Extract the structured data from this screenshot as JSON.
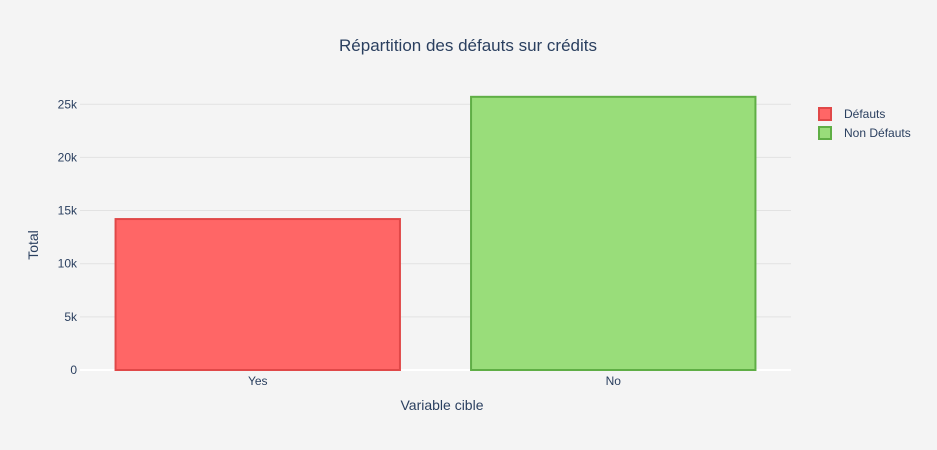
{
  "chart_data": {
    "type": "bar",
    "title": "Répartition des défauts sur crédits",
    "xlabel": "Variable cible",
    "ylabel": "Total",
    "categories": [
      "Yes",
      "No"
    ],
    "series": [
      {
        "name": "Défauts",
        "category": "Yes",
        "value": 14200,
        "fill": "#ff6666",
        "stroke": "#e04848"
      },
      {
        "name": "Non Défauts",
        "category": "No",
        "value": 25700,
        "fill": "#99dd7a",
        "stroke": "#5fae45"
      }
    ],
    "ylim": [
      0,
      27000
    ],
    "yticks": [
      {
        "value": 0,
        "label": "0"
      },
      {
        "value": 5000,
        "label": "5k"
      },
      {
        "value": 10000,
        "label": "10k"
      },
      {
        "value": 15000,
        "label": "15k"
      },
      {
        "value": 20000,
        "label": "20k"
      },
      {
        "value": 25000,
        "label": "25k"
      }
    ],
    "grid": true,
    "legend_position": "top-right"
  }
}
